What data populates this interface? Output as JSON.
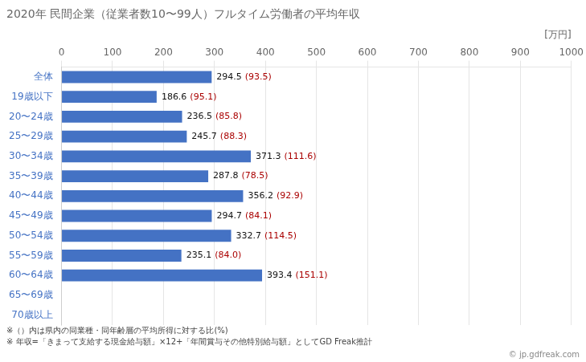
{
  "chart_data": {
    "type": "bar",
    "orientation": "horizontal",
    "title": "2020年 民間企業（従業者数10〜99人）フルタイム労働者の平均年収",
    "xlabel": "[万円]",
    "categories": [
      "全体",
      "19歳以下",
      "20〜24歳",
      "25〜29歳",
      "30〜34歳",
      "35〜39歳",
      "40〜44歳",
      "45〜49歳",
      "50〜54歳",
      "55〜59歳",
      "60〜64歳",
      "65〜69歳",
      "70歳以上"
    ],
    "values": [
      294.5,
      186.6,
      236.5,
      245.7,
      371.3,
      287.8,
      356.2,
      294.7,
      332.7,
      235.1,
      393.4,
      null,
      null
    ],
    "color": "#4472C4",
    "ratios": {
      "values": [
        93.5,
        95.1,
        85.8,
        88.3,
        111.6,
        78.5,
        92.9,
        84.1,
        114.5,
        84.0,
        151.1,
        null,
        null
      ],
      "value_labels": [
        "(93.5)",
        "(95.1)",
        "(85.8)",
        "(88.3)",
        "(111.6)",
        "(78.5)",
        "(92.9)",
        "(84.1)",
        "(114.5)",
        "(84.0)",
        "(151.1)",
        null,
        null
      ],
      "color": "#AA0000"
    },
    "xlim": [
      0,
      1000
    ],
    "xticks": [
      0,
      100,
      200,
      300,
      400,
      500,
      600,
      700,
      800,
      900,
      1000
    ],
    "grid": true,
    "data_labels": true,
    "annotations": [
      "※（）内は県内の同業種・同年齢層の平均所得に対する比(%)",
      "※ 年収=「きまって支給する現金給与額」×12+「年間賞与その他特別給与額」としてGD Freak推計",
      "© jp.gdfreak.com"
    ]
  }
}
